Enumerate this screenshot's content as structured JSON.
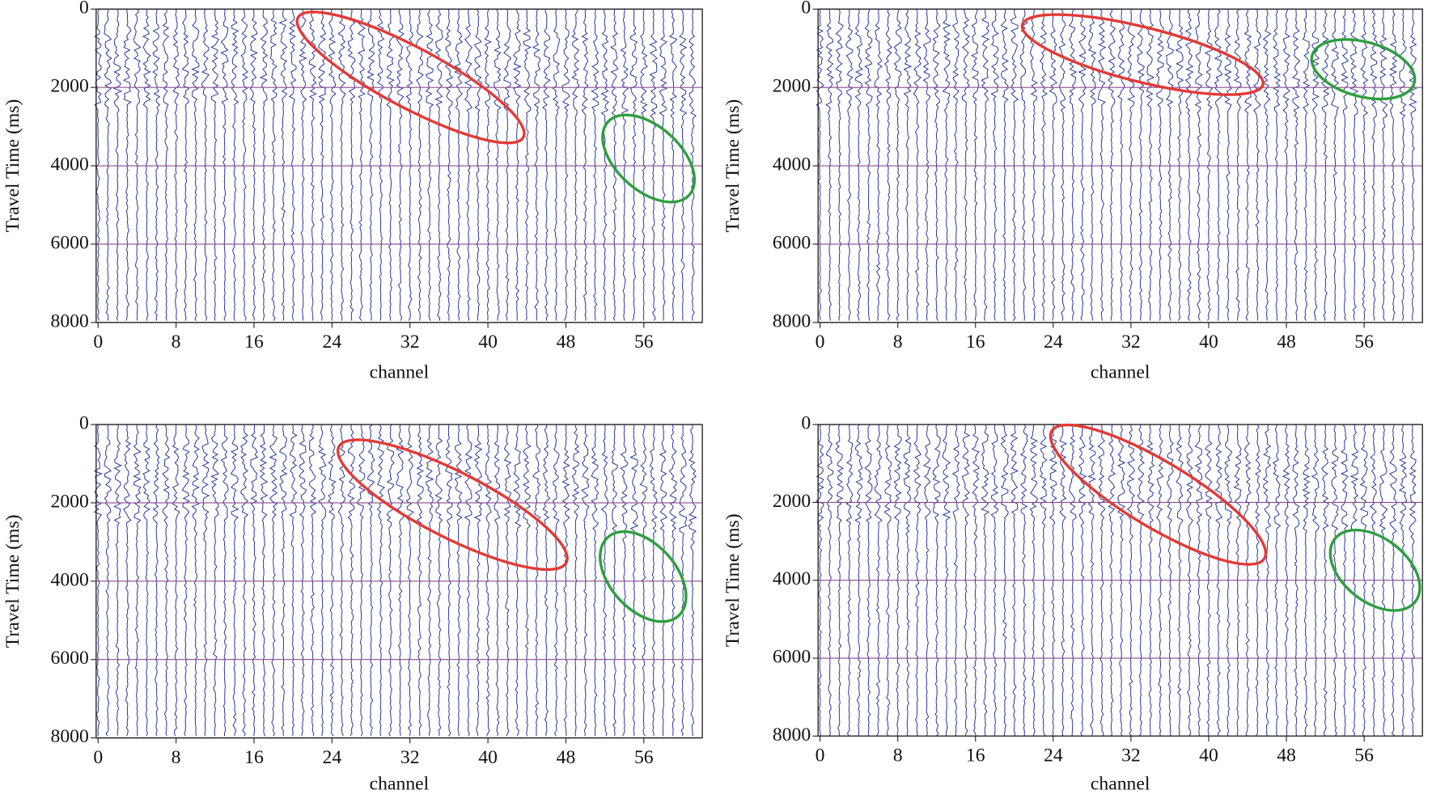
{
  "chart_data": [
    {
      "type": "wiggle",
      "xlabel": "channel",
      "ylabel": "Travel Time (ms)",
      "xlim": [
        -0.2,
        62
      ],
      "ylim": [
        0,
        8000
      ],
      "invert_y": true,
      "xticks": [
        0,
        8,
        16,
        24,
        32,
        40,
        48,
        56
      ],
      "yticks": [
        0,
        2000,
        4000,
        6000,
        8000
      ],
      "grid": true,
      "color": "#2b3a9e"
    },
    {
      "type": "wiggle",
      "xlabel": "channel",
      "ylabel": "Travel Time (ms)",
      "xlim": [
        -0.2,
        62
      ],
      "ylim": [
        0,
        8000
      ],
      "invert_y": true,
      "xticks": [
        0,
        8,
        16,
        24,
        32,
        40,
        48,
        56
      ],
      "yticks": [
        0,
        2000,
        4000,
        6000,
        8000
      ],
      "grid": true,
      "color": "#2b3a9e"
    },
    {
      "type": "wiggle",
      "xlabel": "channel",
      "ylabel": "Travel Time (ms)",
      "xlim": [
        -0.2,
        62
      ],
      "ylim": [
        0,
        8000
      ],
      "invert_y": true,
      "xticks": [
        0,
        8,
        16,
        24,
        32,
        40,
        48,
        56
      ],
      "yticks": [
        0,
        2000,
        4000,
        6000,
        8000
      ],
      "grid": true,
      "color": "#2b3a9e"
    },
    {
      "type": "wiggle",
      "xlabel": "channel",
      "ylabel": "Travel Time (ms)",
      "xlim": [
        -0.2,
        62
      ],
      "ylim": [
        0,
        8000
      ],
      "invert_y": true,
      "xticks": [
        0,
        8,
        16,
        24,
        32,
        40,
        48,
        56
      ],
      "yticks": [
        0,
        2000,
        4000,
        6000,
        8000
      ],
      "grid": true,
      "color": "#2b3a9e"
    }
  ]
}
